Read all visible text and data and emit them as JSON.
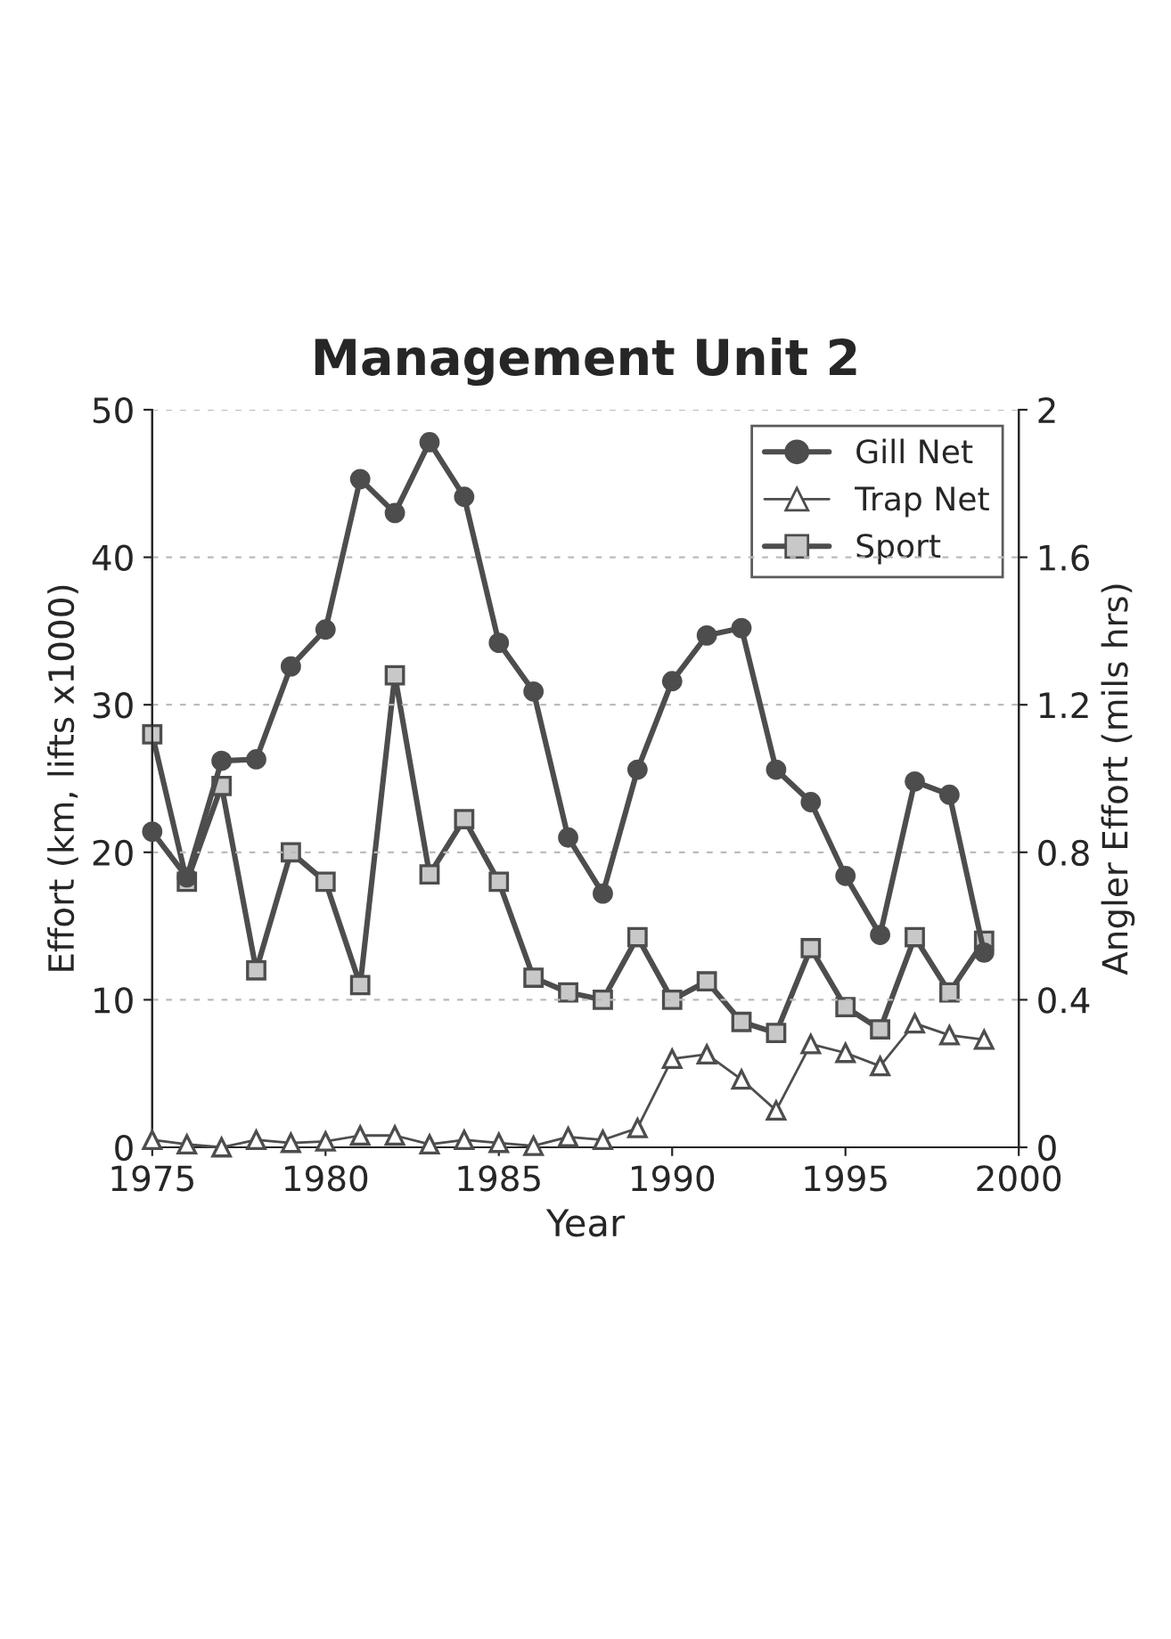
{
  "chart_data": {
    "type": "line",
    "title": "Management Unit 2",
    "xlabel": "Year",
    "ylabel": "Effort (km, lifts x1000)",
    "y2label": "Angler Effort (mils hrs)",
    "x": [
      1975,
      1976,
      1977,
      1978,
      1979,
      1980,
      1981,
      1982,
      1983,
      1984,
      1985,
      1986,
      1987,
      1988,
      1989,
      1990,
      1991,
      1992,
      1993,
      1994,
      1995,
      1996,
      1997,
      1998,
      1999
    ],
    "series": [
      {
        "name": "Gill Net",
        "color": "#4d4d4d",
        "marker": "circle",
        "values": [
          21.4,
          18.3,
          26.2,
          26.3,
          32.6,
          35.1,
          45.3,
          43.0,
          47.8,
          44.1,
          34.2,
          30.9,
          21.0,
          17.2,
          25.6,
          31.6,
          34.7,
          35.2,
          25.6,
          23.4,
          18.4,
          14.4,
          24.8,
          23.9,
          13.2
        ]
      },
      {
        "name": "Trap Net",
        "color": "#ffffff",
        "marker": "triangle",
        "values": [
          0.5,
          0.2,
          0.0,
          0.5,
          0.3,
          0.4,
          0.8,
          0.8,
          0.2,
          0.5,
          0.3,
          0.1,
          0.7,
          0.5,
          1.3,
          6.0,
          6.3,
          4.6,
          2.5,
          7.0,
          6.4,
          5.5,
          8.4,
          7.6,
          7.3
        ]
      },
      {
        "name": "Sport",
        "color": "#c8c8c8",
        "marker": "square",
        "axis": "y2",
        "values": [
          1.12,
          0.72,
          0.98,
          0.48,
          0.8,
          0.72,
          0.44,
          1.28,
          0.74,
          0.89,
          0.72,
          0.46,
          0.42,
          0.4,
          0.57,
          0.4,
          0.45,
          0.34,
          0.31,
          0.54,
          0.38,
          0.32,
          0.57,
          0.42,
          0.56
        ]
      }
    ],
    "xlim": [
      1975,
      2000
    ],
    "xticks": [
      1975,
      1980,
      1985,
      1990,
      1995,
      2000
    ],
    "ylim": [
      0,
      50
    ],
    "yticks": [
      0,
      10,
      20,
      30,
      40,
      50
    ],
    "y2lim": [
      0,
      2
    ],
    "y2ticks": [
      0,
      0.4,
      0.8,
      1.2,
      1.6,
      2
    ],
    "grid": "y",
    "legend": "top right"
  }
}
